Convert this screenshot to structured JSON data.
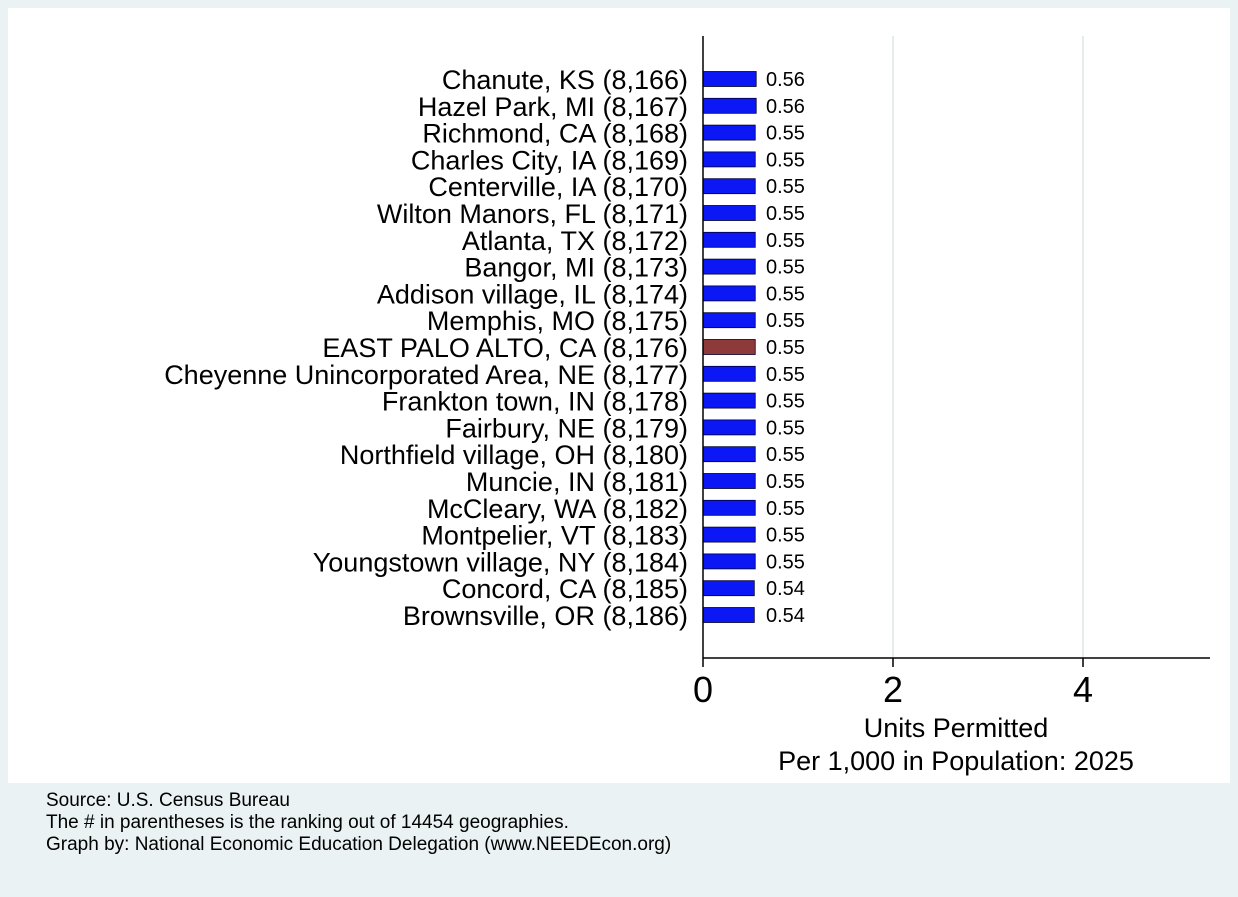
{
  "chart_data": {
    "type": "bar",
    "orientation": "horizontal",
    "categories": [
      "Chanute, KS (8,166)",
      "Hazel Park, MI (8,167)",
      "Richmond, CA (8,168)",
      "Charles City, IA (8,169)",
      "Centerville, IA (8,170)",
      "Wilton Manors, FL (8,171)",
      "Atlanta, TX (8,172)",
      "Bangor, MI (8,173)",
      "Addison village, IL (8,174)",
      "Memphis, MO (8,175)",
      "EAST PALO ALTO, CA (8,176)",
      "Cheyenne Unincorporated Area, NE (8,177)",
      "Frankton town, IN (8,178)",
      "Fairbury, NE (8,179)",
      "Northfield village, OH (8,180)",
      "Muncie, IN (8,181)",
      "McCleary, WA (8,182)",
      "Montpelier, VT (8,183)",
      "Youngstown village, NY (8,184)",
      "Concord, CA (8,185)",
      "Brownsville, OR (8,186)"
    ],
    "values": [
      0.56,
      0.56,
      0.55,
      0.55,
      0.55,
      0.55,
      0.55,
      0.55,
      0.55,
      0.55,
      0.55,
      0.55,
      0.55,
      0.55,
      0.55,
      0.55,
      0.55,
      0.55,
      0.55,
      0.54,
      0.54
    ],
    "value_labels": [
      "0.56",
      "0.56",
      "0.55",
      "0.55",
      "0.55",
      "0.55",
      "0.55",
      "0.55",
      "0.55",
      "0.55",
      "0.55",
      "0.55",
      "0.55",
      "0.55",
      "0.55",
      "0.55",
      "0.55",
      "0.55",
      "0.55",
      "0.54",
      "0.54"
    ],
    "highlight_index": 10,
    "xlabel_lines": [
      "Units Permitted",
      "Per 1,000 in Population: 2025"
    ],
    "xticks": [
      0,
      2,
      4
    ],
    "xtick_labels": [
      "0",
      "2",
      "4"
    ],
    "xlim": [
      0,
      5.4
    ],
    "grid": true,
    "colors": {
      "bar": "#0b18f5",
      "highlight": "#8e3a3a",
      "bar_outline": "#000033",
      "grid": "#e4ecee",
      "outer_background": "#eaf2f3",
      "plot_background": "#ffffff"
    }
  },
  "notes": {
    "source": "Source: U.S. Census Bureau",
    "ranking": "The # in parentheses is the ranking out of 14454 geographies.",
    "credit": "Graph by: National Economic Education Delegation (www.NEEDEcon.org)"
  }
}
